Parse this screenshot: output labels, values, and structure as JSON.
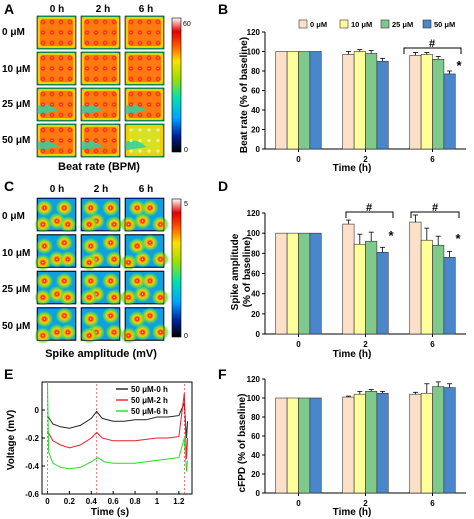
{
  "colors": {
    "c0": "#FCE0C8",
    "c10": "#FFFF99",
    "c25": "#7FC98A",
    "c50": "#4A86CC",
    "trace0": "#222222",
    "trace2": "#E8202A",
    "trace6": "#2BD92B"
  },
  "panels": {
    "A": {
      "letter": "A",
      "col_labels": [
        "0 h",
        "2 h",
        "6 h"
      ],
      "row_labels": [
        "0 μM",
        "10 μM",
        "25 μM",
        "50 μM"
      ],
      "colorbar_max": "60",
      "colorbar_min": "0",
      "title": "Beat rate (BPM)"
    },
    "C": {
      "letter": "C",
      "col_labels": [
        "0 h",
        "2 h",
        "6 h"
      ],
      "row_labels": [
        "0 μM",
        "10 μM",
        "25 μM",
        "50 μM"
      ],
      "colorbar_max": "5",
      "colorbar_min": "0",
      "title": "Spike amplitude (mV)"
    },
    "B": {
      "letter": "B",
      "sig_star": "*",
      "sig_hash": "#"
    },
    "D": {
      "letter": "D",
      "sig_star": "*",
      "sig_hash": "#"
    },
    "E": {
      "letter": "E"
    },
    "F": {
      "letter": "F"
    }
  },
  "chart_data": [
    {
      "id": "B",
      "type": "bar",
      "categories": [
        "0",
        "2",
        "6"
      ],
      "series": [
        {
          "name": "0 μM",
          "values": [
            100,
            97,
            96
          ],
          "errors": [
            0,
            3,
            3
          ]
        },
        {
          "name": "10 μM",
          "values": [
            100,
            100,
            97
          ],
          "errors": [
            0,
            2,
            2
          ]
        },
        {
          "name": "25 μM",
          "values": [
            100,
            98,
            92
          ],
          "errors": [
            0,
            3,
            3
          ]
        },
        {
          "name": "50 μM",
          "values": [
            100,
            90,
            77
          ],
          "errors": [
            0,
            3,
            3
          ]
        }
      ],
      "xlabel": "Time (h)",
      "ylabel": "Beat rate (% of baseline)",
      "ylim": [
        0,
        120
      ],
      "yticks": [
        0,
        20,
        40,
        60,
        80,
        100,
        120
      ],
      "legend": "top"
    },
    {
      "id": "D",
      "type": "bar",
      "categories": [
        "0",
        "2",
        "6"
      ],
      "series": [
        {
          "name": "0 μM",
          "values": [
            100,
            109,
            111
          ],
          "errors": [
            0,
            4,
            7
          ]
        },
        {
          "name": "10 μM",
          "values": [
            100,
            89,
            93
          ],
          "errors": [
            0,
            10,
            12
          ]
        },
        {
          "name": "25 μM",
          "values": [
            100,
            92,
            88
          ],
          "errors": [
            0,
            9,
            9
          ]
        },
        {
          "name": "50 μM",
          "values": [
            100,
            81,
            76
          ],
          "errors": [
            0,
            5,
            6
          ]
        }
      ],
      "xlabel": "Time (h)",
      "ylabel_lines": [
        "Spike amplitude",
        "(% of baseline)"
      ],
      "ylim": [
        0,
        120
      ],
      "yticks": [
        0,
        20,
        40,
        60,
        80,
        100,
        120
      ]
    },
    {
      "id": "E",
      "type": "line",
      "series": [
        {
          "name": "50 μM-0 h",
          "points": [
            [
              0,
              -0.04
            ],
            [
              0.05,
              -0.1
            ],
            [
              0.12,
              -0.12
            ],
            [
              0.2,
              -0.13
            ],
            [
              0.3,
              -0.11
            ],
            [
              0.4,
              -0.06
            ],
            [
              0.45,
              -0.01
            ],
            [
              0.5,
              -0.06
            ],
            [
              0.6,
              -0.08
            ],
            [
              0.7,
              -0.08
            ],
            [
              0.8,
              -0.07
            ],
            [
              0.9,
              -0.07
            ],
            [
              1.0,
              -0.05
            ],
            [
              1.1,
              -0.05
            ],
            [
              1.2,
              -0.04
            ],
            [
              1.25,
              0.05
            ],
            [
              1.27,
              -0.2
            ],
            [
              1.28,
              -0.08
            ]
          ]
        },
        {
          "name": "50 μM-2 h",
          "points": [
            [
              0,
              -0.15
            ],
            [
              0.05,
              -0.22
            ],
            [
              0.12,
              -0.25
            ],
            [
              0.2,
              -0.27
            ],
            [
              0.3,
              -0.25
            ],
            [
              0.4,
              -0.2
            ],
            [
              0.45,
              -0.16
            ],
            [
              0.5,
              -0.2
            ],
            [
              0.6,
              -0.22
            ],
            [
              0.7,
              -0.22
            ],
            [
              0.8,
              -0.22
            ],
            [
              0.9,
              -0.21
            ],
            [
              1.0,
              -0.2
            ],
            [
              1.1,
              -0.2
            ],
            [
              1.2,
              -0.19
            ],
            [
              1.25,
              0.12
            ],
            [
              1.27,
              -0.35
            ],
            [
              1.28,
              -0.2
            ]
          ]
        },
        {
          "name": "50 μM-6 h",
          "points": [
            [
              0,
              0.2
            ],
            [
              0.01,
              -0.3
            ],
            [
              0.05,
              -0.38
            ],
            [
              0.12,
              -0.41
            ],
            [
              0.2,
              -0.42
            ],
            [
              0.3,
              -0.41
            ],
            [
              0.4,
              -0.37
            ],
            [
              0.46,
              -0.34
            ],
            [
              0.52,
              -0.37
            ],
            [
              0.6,
              -0.38
            ],
            [
              0.7,
              -0.38
            ],
            [
              0.8,
              -0.38
            ],
            [
              0.9,
              -0.37
            ],
            [
              1.0,
              -0.36
            ],
            [
              1.1,
              -0.35
            ],
            [
              1.2,
              -0.34
            ],
            [
              1.25,
              -0.2
            ],
            [
              1.27,
              -0.44
            ],
            [
              1.28,
              -0.36
            ]
          ]
        }
      ],
      "xlabel": "Time (s)",
      "ylabel": "Voltage (mV)",
      "xlim": [
        -0.05,
        1.32
      ],
      "ylim": [
        -0.6,
        0.2
      ],
      "xticks": [
        "0",
        "0.2",
        "0.4",
        "0.6",
        "0.8",
        "1",
        "1.2"
      ],
      "yticks": [
        "-0.6",
        "-0.4",
        "-0.2",
        "0"
      ],
      "legend": "top-right"
    },
    {
      "id": "F",
      "type": "bar",
      "categories": [
        "0",
        "2",
        "6"
      ],
      "series": [
        {
          "name": "0 μM",
          "values": [
            100,
            101,
            104
          ],
          "errors": [
            0,
            1,
            2
          ]
        },
        {
          "name": "10 μM",
          "values": [
            100,
            104,
            105
          ],
          "errors": [
            0,
            3,
            10
          ]
        },
        {
          "name": "25 μM",
          "values": [
            100,
            107,
            112
          ],
          "errors": [
            0,
            2,
            5
          ]
        },
        {
          "name": "50 μM",
          "values": [
            100,
            105,
            111
          ],
          "errors": [
            0,
            2,
            4
          ]
        }
      ],
      "xlabel": "Time (h)",
      "ylabel": "cFPD (% of baseline)",
      "ylim": [
        0,
        120
      ],
      "yticks": [
        0,
        20,
        40,
        60,
        80,
        100,
        120
      ]
    }
  ]
}
